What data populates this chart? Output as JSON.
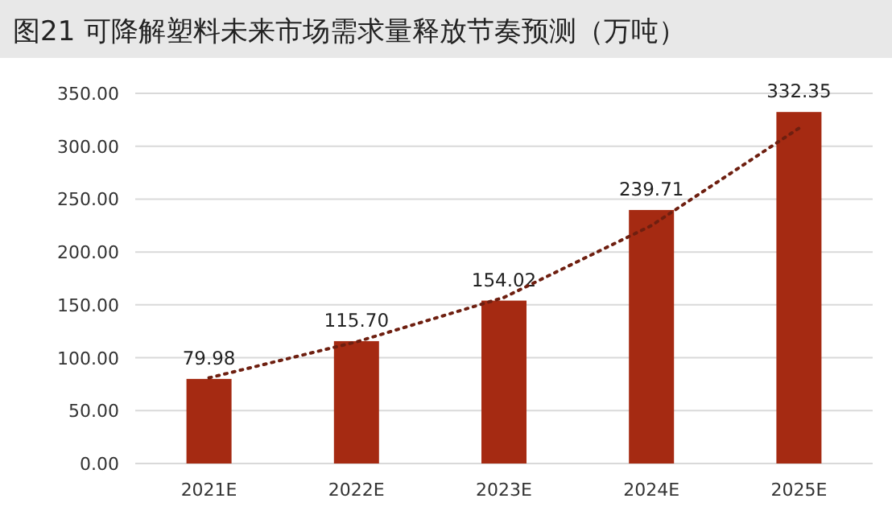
{
  "chart_data": {
    "type": "bar",
    "title": "图21  可降解塑料未来市场需求量释放节奏预测（万吨）",
    "categories": [
      "2021E",
      "2022E",
      "2023E",
      "2024E",
      "2025E"
    ],
    "series": [
      {
        "color": "#a52a12",
        "values": [
          79.98,
          115.7,
          154.02,
          239.71,
          332.35
        ],
        "value_labels": [
          "79.98",
          "115.70",
          "154.02",
          "239.71",
          "332.35"
        ]
      },
      {
        "type": "line",
        "color": "#6e1f10",
        "line_style": "dotted",
        "values": [
          81,
          115,
          157,
          225,
          317
        ]
      }
    ],
    "ylim": [
      0,
      350
    ],
    "yticks": [
      {
        "value": 0,
        "label": "0.00"
      },
      {
        "value": 50,
        "label": "50.00"
      },
      {
        "value": 100,
        "label": "100.00"
      },
      {
        "value": 150,
        "label": "150.00"
      },
      {
        "value": 200,
        "label": "200.00"
      },
      {
        "value": 250,
        "label": "250.00"
      },
      {
        "value": 300,
        "label": "300.00"
      },
      {
        "value": 350,
        "label": "350.00"
      }
    ],
    "grid": "y"
  }
}
